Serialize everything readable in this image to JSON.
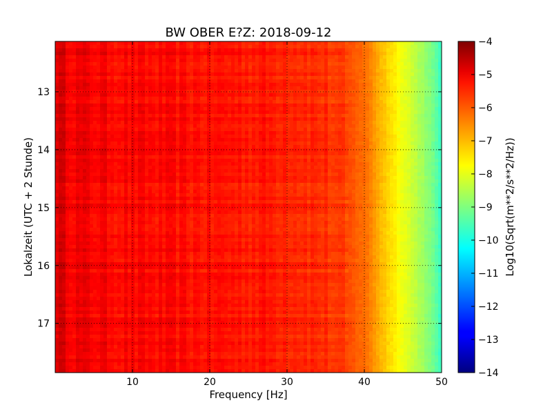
{
  "chart_data": {
    "type": "heatmap",
    "title": "BW OBER E?Z: 2018-09-12",
    "xlabel": "Frequency [Hz]",
    "ylabel": "Lokalzeit (UTC + 2 Stunde)",
    "xlim": [
      0,
      50
    ],
    "ylim": [
      12.13,
      17.85
    ],
    "y_inverted": true,
    "x_ticks": [
      10,
      20,
      30,
      40,
      50
    ],
    "x_tick_labels": [
      "10",
      "20",
      "30",
      "40",
      "50"
    ],
    "y_ticks": [
      13,
      14,
      15,
      16,
      17
    ],
    "y_tick_labels": [
      "13",
      "14",
      "15",
      "16",
      "17"
    ],
    "grid": true,
    "grid_style": "dotted",
    "colormap": "jet",
    "colorbar": {
      "label": "Log10(Sqrt(m**2/s**2/Hz))",
      "range": [
        -14,
        -4
      ],
      "ticks": [
        -4,
        -5,
        -6,
        -7,
        -8,
        -9,
        -10,
        -11,
        -12,
        -13,
        -14
      ],
      "tick_labels": [
        "−4",
        "−5",
        "−6",
        "−7",
        "−8",
        "−9",
        "−10",
        "−11",
        "−12",
        "−13",
        "−14"
      ]
    },
    "spectral_profile": {
      "frequency_hz": [
        0,
        2,
        5,
        10,
        20,
        30,
        35,
        38,
        40,
        41,
        42,
        43,
        44,
        45,
        46,
        47,
        48,
        49,
        50
      ],
      "log10_psd": [
        -4.8,
        -5.1,
        -5.2,
        -5.3,
        -5.4,
        -5.5,
        -5.7,
        -6.0,
        -6.3,
        -6.6,
        -7.0,
        -7.3,
        -7.6,
        -7.9,
        -8.2,
        -8.5,
        -8.8,
        -9.2,
        -9.8
      ]
    }
  }
}
